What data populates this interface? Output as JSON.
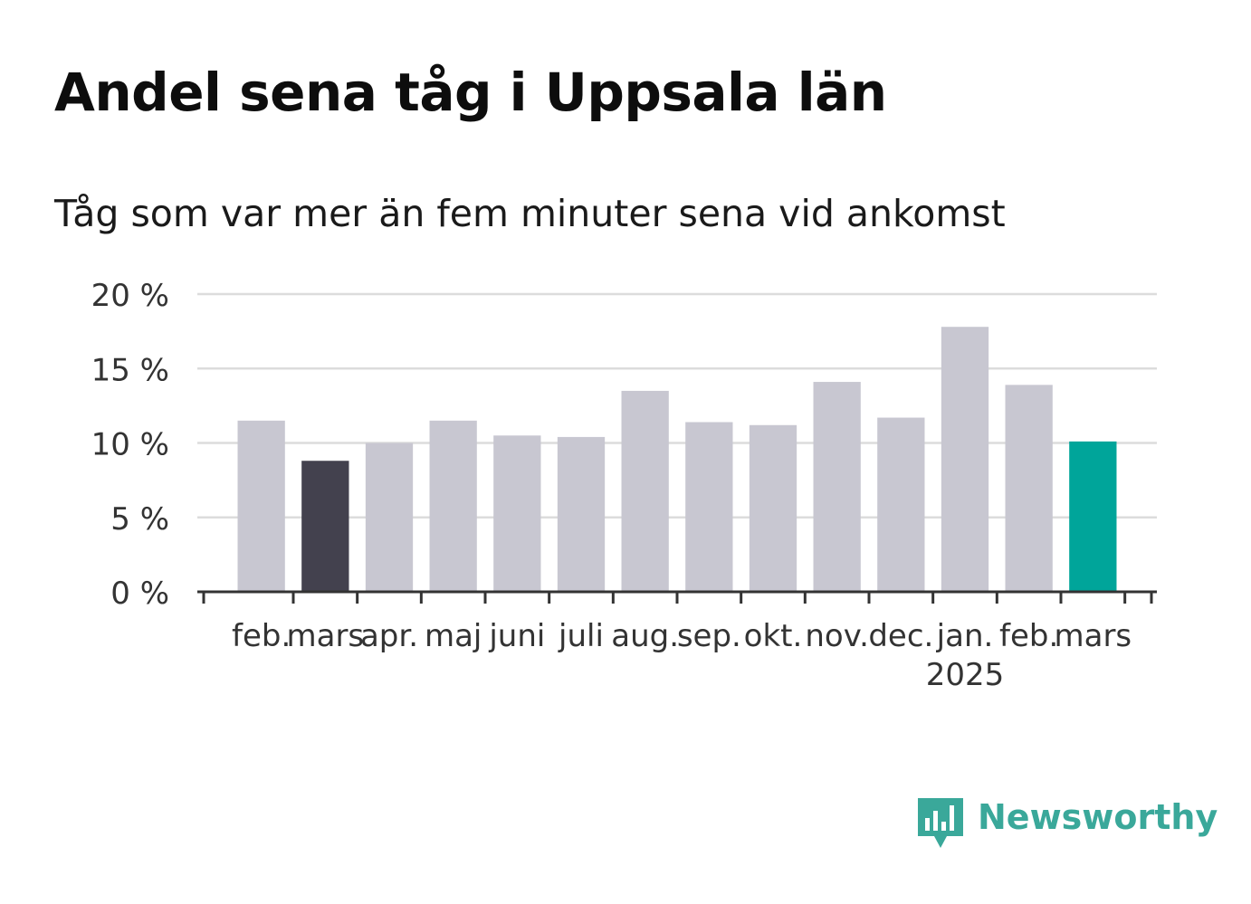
{
  "title": "Andel sena tåg i Uppsala län",
  "subtitle": "Tåg som var mer än fem minuter sena vid ankomst",
  "brand": {
    "name": "Newsworthy",
    "color": "#3aa89a",
    "icon": "newsworthy-logo-icon"
  },
  "chart_data": {
    "type": "bar",
    "categories": [
      "feb.",
      "mars",
      "apr.",
      "maj",
      "juni",
      "juli",
      "aug.",
      "sep.",
      "okt.",
      "nov.",
      "dec.",
      "jan.",
      "feb.",
      "mars"
    ],
    "category_sublabels": [
      "",
      "",
      "",
      "",
      "",
      "",
      "",
      "",
      "",
      "",
      "",
      "2025",
      "",
      ""
    ],
    "values": [
      11.5,
      8.8,
      10.0,
      11.5,
      10.5,
      10.4,
      13.5,
      11.4,
      11.2,
      14.1,
      11.7,
      17.8,
      13.9,
      10.1
    ],
    "colors": [
      "#c8c7d1",
      "#43414e",
      "#c8c7d1",
      "#c8c7d1",
      "#c8c7d1",
      "#c8c7d1",
      "#c8c7d1",
      "#c8c7d1",
      "#c8c7d1",
      "#c8c7d1",
      "#c8c7d1",
      "#c8c7d1",
      "#c8c7d1",
      "#00a59a"
    ],
    "ylim": [
      0,
      20
    ],
    "yticks": [
      0,
      5,
      10,
      15,
      20
    ],
    "ytick_labels": [
      "0 %",
      "5 %",
      "10 %",
      "15 %",
      "20 %"
    ],
    "grid": true,
    "xlabel": "",
    "ylabel": ""
  }
}
